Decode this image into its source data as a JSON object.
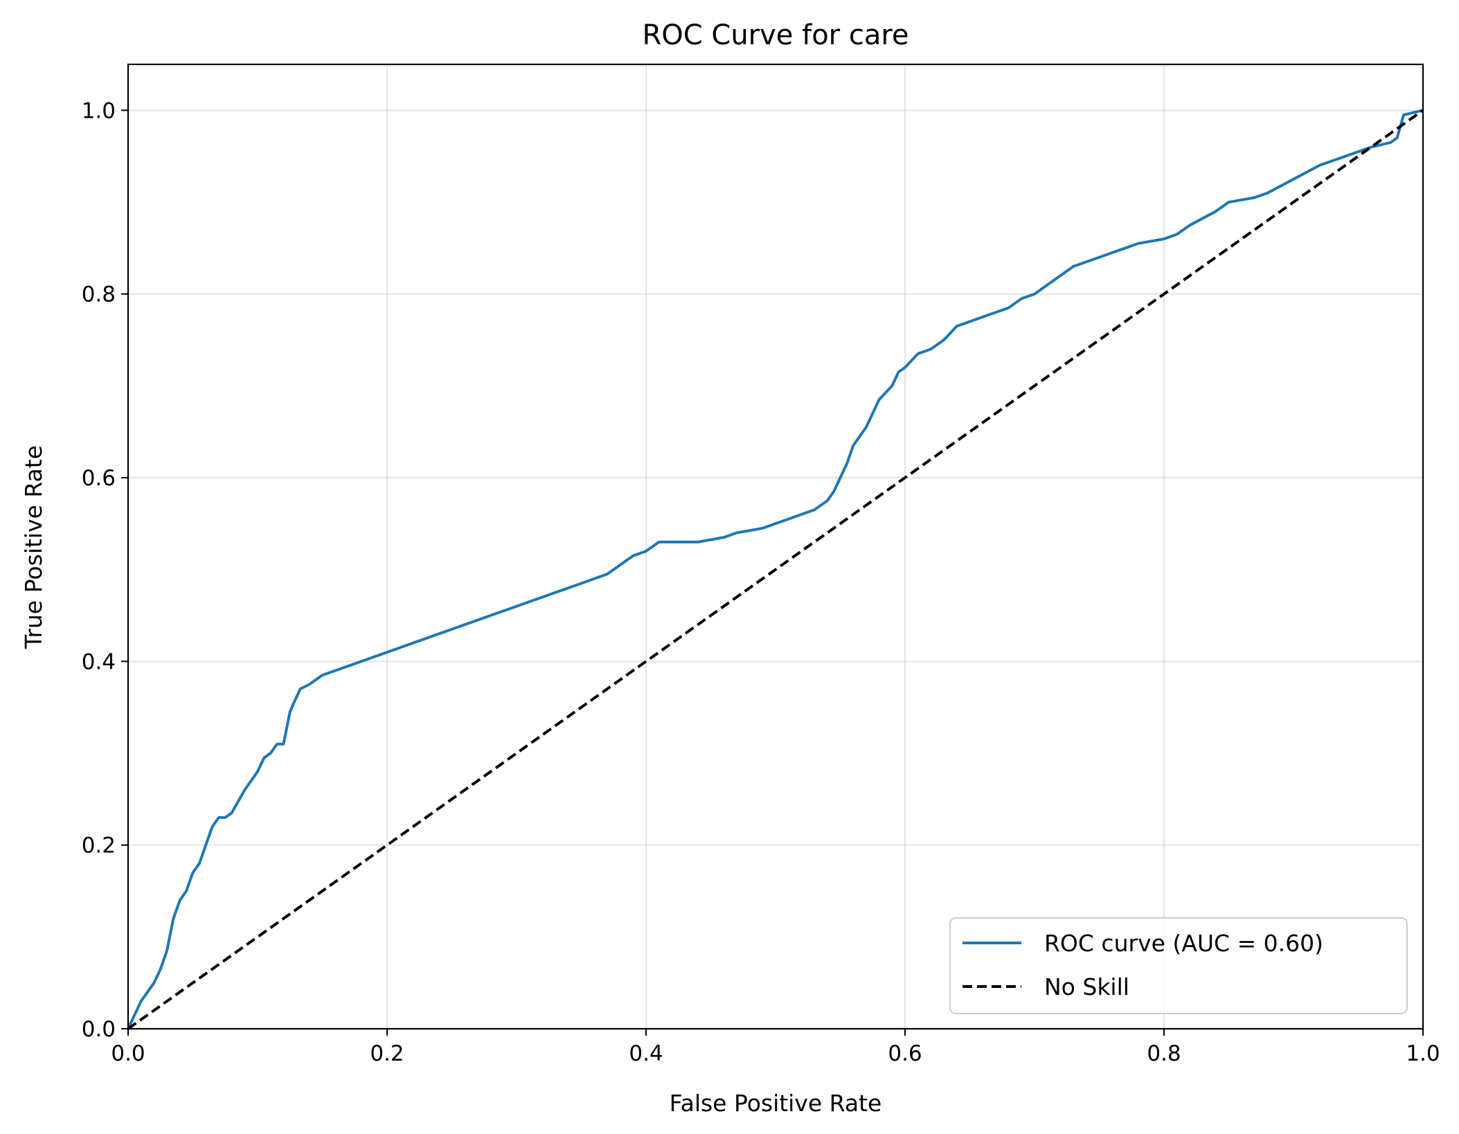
{
  "chart_data": {
    "type": "line",
    "title": "ROC Curve for care",
    "xlabel": "False Positive Rate",
    "ylabel": "True Positive Rate",
    "xlim": [
      0,
      1
    ],
    "ylim": [
      0,
      1.05
    ],
    "xticks": [
      "0.0",
      "0.2",
      "0.4",
      "0.6",
      "0.8",
      "1.0"
    ],
    "yticks": [
      "0.0",
      "0.2",
      "0.4",
      "0.6",
      "0.8",
      "1.0"
    ],
    "grid": true,
    "legend_position": "lower-right",
    "series": [
      {
        "name": "ROC curve (AUC = 0.60)",
        "color": "#1f77b4",
        "style": "solid",
        "x": [
          0.0,
          0.01,
          0.02,
          0.025,
          0.03,
          0.035,
          0.04,
          0.045,
          0.05,
          0.055,
          0.06,
          0.065,
          0.07,
          0.075,
          0.08,
          0.09,
          0.095,
          0.1,
          0.105,
          0.11,
          0.115,
          0.12,
          0.125,
          0.128,
          0.133,
          0.14,
          0.15,
          0.16,
          0.17,
          0.2,
          0.25,
          0.3,
          0.35,
          0.37,
          0.38,
          0.39,
          0.4,
          0.41,
          0.44,
          0.46,
          0.47,
          0.49,
          0.5,
          0.51,
          0.53,
          0.54,
          0.545,
          0.55,
          0.555,
          0.56,
          0.57,
          0.575,
          0.58,
          0.59,
          0.595,
          0.6,
          0.61,
          0.62,
          0.63,
          0.64,
          0.65,
          0.66,
          0.67,
          0.68,
          0.69,
          0.7,
          0.71,
          0.72,
          0.73,
          0.74,
          0.75,
          0.76,
          0.78,
          0.8,
          0.81,
          0.82,
          0.84,
          0.85,
          0.87,
          0.88,
          0.9,
          0.92,
          0.94,
          0.96,
          0.975,
          0.98,
          0.985,
          1.0
        ],
        "y": [
          0.0,
          0.03,
          0.05,
          0.065,
          0.085,
          0.12,
          0.14,
          0.15,
          0.17,
          0.18,
          0.2,
          0.22,
          0.23,
          0.23,
          0.235,
          0.26,
          0.27,
          0.28,
          0.295,
          0.3,
          0.31,
          0.31,
          0.345,
          0.355,
          0.37,
          0.375,
          0.385,
          0.39,
          0.395,
          0.41,
          0.435,
          0.46,
          0.485,
          0.495,
          0.505,
          0.515,
          0.52,
          0.53,
          0.53,
          0.535,
          0.54,
          0.545,
          0.55,
          0.555,
          0.565,
          0.575,
          0.585,
          0.6,
          0.615,
          0.635,
          0.655,
          0.67,
          0.685,
          0.7,
          0.715,
          0.72,
          0.735,
          0.74,
          0.75,
          0.765,
          0.77,
          0.775,
          0.78,
          0.785,
          0.795,
          0.8,
          0.81,
          0.82,
          0.83,
          0.835,
          0.84,
          0.845,
          0.855,
          0.86,
          0.865,
          0.875,
          0.89,
          0.9,
          0.905,
          0.91,
          0.925,
          0.94,
          0.95,
          0.96,
          0.965,
          0.97,
          0.995,
          1.0
        ]
      },
      {
        "name": "No Skill",
        "color": "#000000",
        "style": "dashed",
        "x": [
          0,
          1
        ],
        "y": [
          0,
          1
        ]
      }
    ]
  }
}
